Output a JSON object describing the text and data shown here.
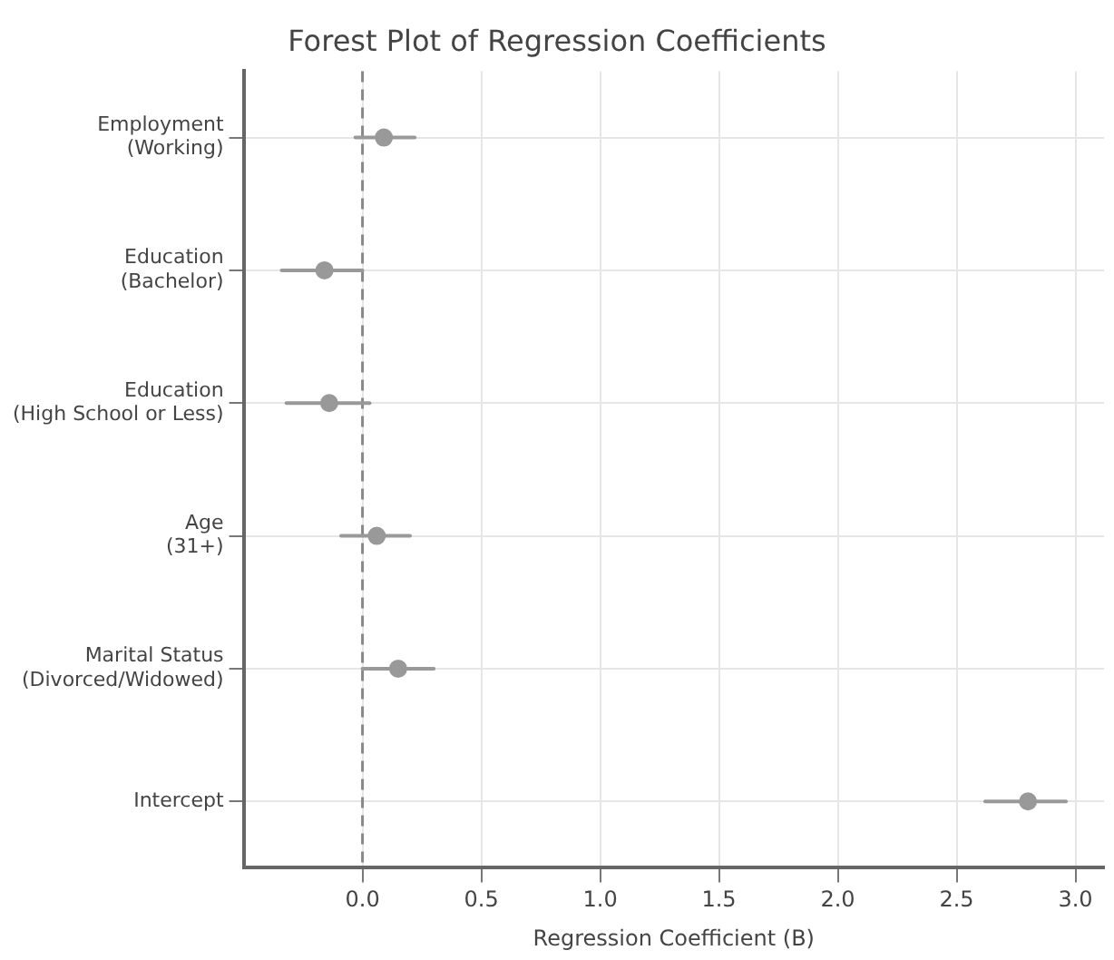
{
  "chart_data": {
    "type": "scatter",
    "orientation": "horizontal",
    "title": "Forest Plot of Regression Coefficients",
    "xlabel": "Regression Coefficient (B)",
    "categories": [
      "Employment\n(Working)",
      "Education\n(Bachelor)",
      "Education\n(High School or Less)",
      "Age\n(31+)",
      "Marital Status\n(Divorced/Widowed)",
      "Intercept"
    ],
    "values": [
      0.09,
      -0.16,
      -0.14,
      0.06,
      0.15,
      2.8
    ],
    "errors": [
      [
        -0.03,
        0.22
      ],
      [
        -0.34,
        0.0
      ],
      [
        -0.32,
        0.03
      ],
      [
        -0.09,
        0.2
      ],
      [
        0.0,
        0.3
      ],
      [
        2.62,
        2.96
      ]
    ],
    "color": "#999999",
    "marker": "circle",
    "grid": true,
    "xlim": [
      -0.5,
      3.12
    ],
    "xticks": [
      {
        "value": 0,
        "label": "0.0"
      },
      0.5,
      {
        "value": 1,
        "label": "1.0"
      },
      1.5,
      {
        "value": 2,
        "label": "2.0"
      },
      2.5,
      {
        "value": 3,
        "label": "3.0"
      }
    ],
    "ref_lines": [
      {
        "axis": "x",
        "value": 0,
        "color": "#888888",
        "line_style": "dashed"
      }
    ]
  }
}
